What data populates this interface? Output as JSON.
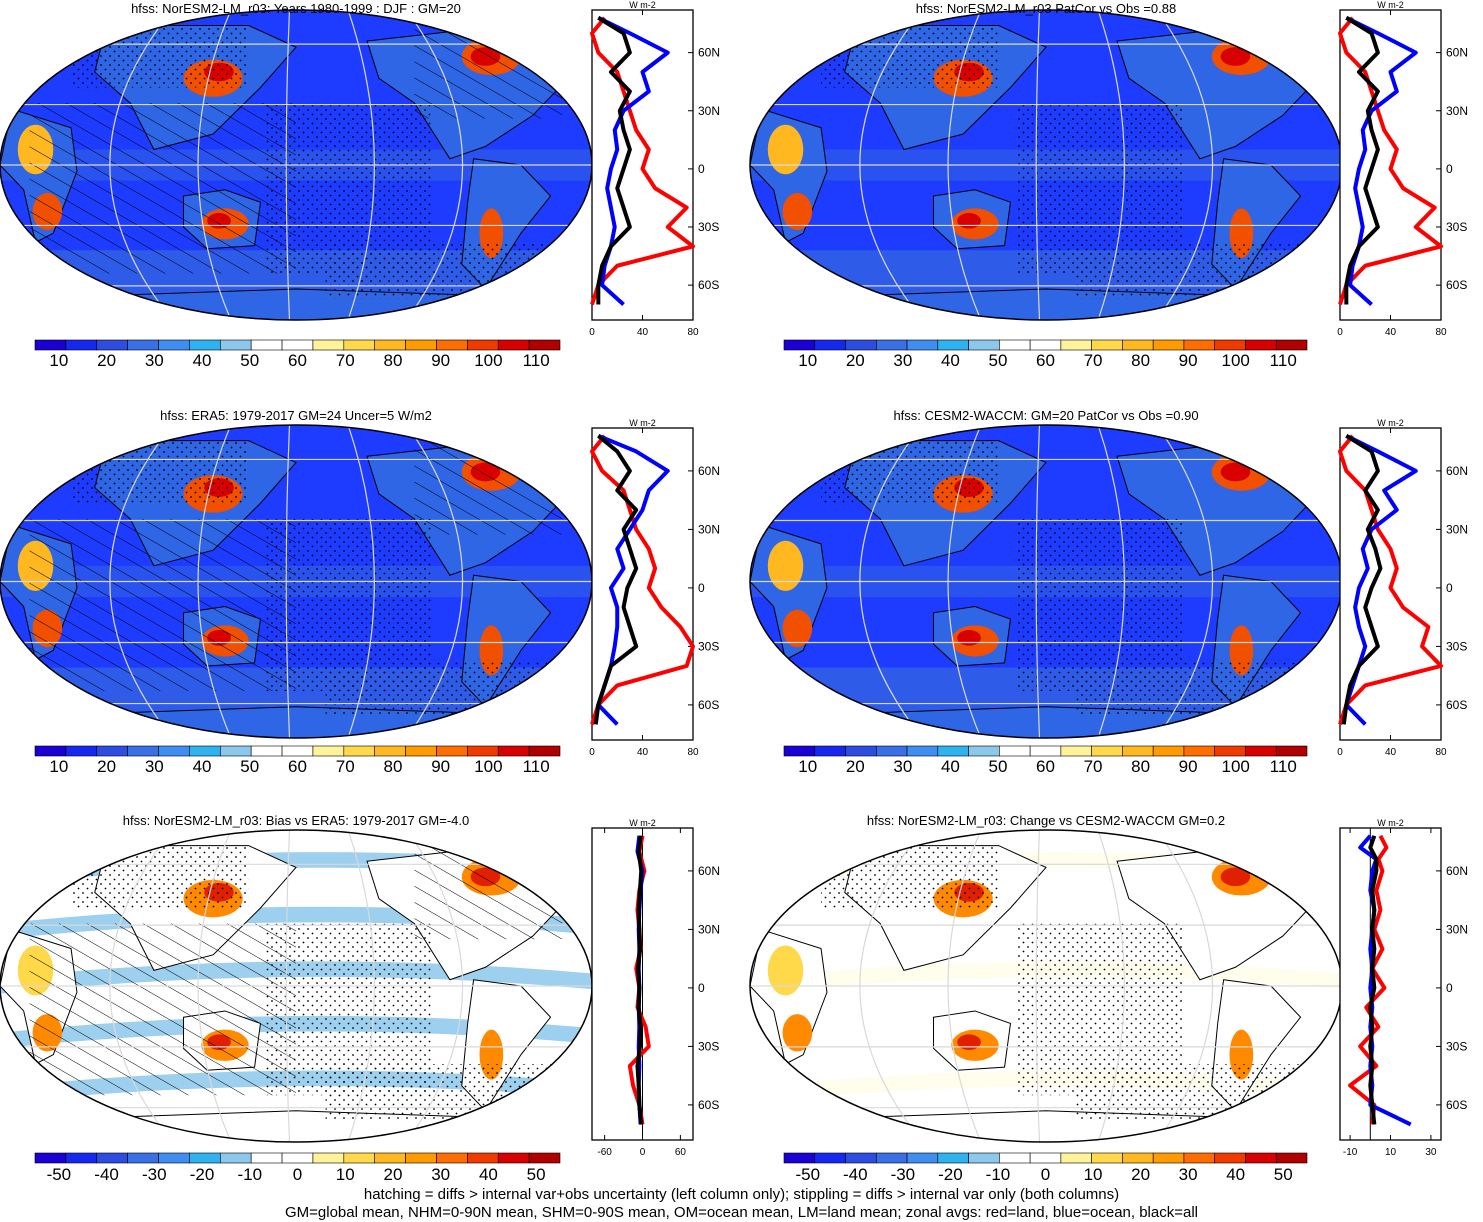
{
  "footer": {
    "line1": "hatching = diffs > internal var+obs uncertainty (left column only); stippling = diffs > internal var only (both columns)",
    "line2": "GM=global mean, NHM=0-90N mean, SHM=0-90S mean, OM=ocean mean, LM=land mean; zonal avgs: red=land, blue=ocean, black=all"
  },
  "colors": {
    "land": "#ff0000",
    "ocean": "#0000ff",
    "all": "#000000",
    "ocean_background": "#1e3cff"
  },
  "chart_data": [
    {
      "type": "heatmap",
      "title": "hfss: NorESM2-LM_r03: Years 1980-1999 : DJF : GM=20",
      "projection": "robinson",
      "colorbar_ticks": [
        "10",
        "20",
        "30",
        "40",
        "50",
        "60",
        "70",
        "80",
        "90",
        "100",
        "110"
      ],
      "colorbar_range": [
        5,
        115
      ],
      "hatching": true,
      "stippling": true,
      "zonal": {
        "unit": "W m-2",
        "xlim": [
          0,
          80
        ],
        "xticks": [
          "0",
          "40",
          "80"
        ],
        "lat_ticks": [
          "60N",
          "30N",
          "0",
          "30S",
          "60S"
        ],
        "series": [
          {
            "name": "land",
            "lat": [
              78,
              70,
              60,
              50,
              40,
              30,
              20,
              10,
              0,
              -10,
              -20,
              -30,
              -40,
              -50,
              -60,
              -70
            ],
            "values": [
              10,
              0,
              5,
              20,
              25,
              30,
              35,
              45,
              40,
              50,
              75,
              60,
              80,
              20,
              5,
              0
            ]
          },
          {
            "name": "ocean",
            "lat": [
              78,
              70,
              60,
              50,
              40,
              30,
              20,
              10,
              0,
              -10,
              -20,
              -30,
              -40,
              -50,
              -60,
              -70
            ],
            "values": [
              5,
              30,
              60,
              40,
              45,
              25,
              18,
              20,
              15,
              12,
              15,
              18,
              15,
              10,
              8,
              25
            ]
          },
          {
            "name": "all",
            "lat": [
              78,
              70,
              60,
              50,
              40,
              30,
              20,
              10,
              0,
              -10,
              -20,
              -30,
              -40,
              -50,
              -60,
              -70
            ],
            "values": [
              5,
              25,
              30,
              15,
              30,
              22,
              25,
              30,
              25,
              20,
              25,
              30,
              15,
              8,
              5,
              5
            ]
          }
        ]
      }
    },
    {
      "type": "heatmap",
      "title": "hfss: NorESM2-LM_r03 PatCor vs Obs =0.88",
      "projection": "robinson",
      "colorbar_ticks": [
        "10",
        "20",
        "30",
        "40",
        "50",
        "60",
        "70",
        "80",
        "90",
        "100",
        "110"
      ],
      "colorbar_range": [
        5,
        115
      ],
      "hatching": false,
      "stippling": true,
      "zonal": {
        "unit": "W m-2",
        "xlim": [
          0,
          80
        ],
        "xticks": [
          "0",
          "40",
          "80"
        ],
        "lat_ticks": [
          "60N",
          "30N",
          "0",
          "30S",
          "60S"
        ],
        "series": [
          {
            "name": "land",
            "lat": [
              78,
              70,
              60,
              50,
              40,
              30,
              20,
              10,
              0,
              -10,
              -20,
              -30,
              -40,
              -50,
              -60,
              -70
            ],
            "values": [
              10,
              0,
              5,
              20,
              25,
              30,
              35,
              45,
              40,
              50,
              75,
              60,
              80,
              20,
              5,
              0
            ]
          },
          {
            "name": "ocean",
            "lat": [
              78,
              70,
              60,
              50,
              40,
              30,
              20,
              10,
              0,
              -10,
              -20,
              -30,
              -40,
              -50,
              -60,
              -70
            ],
            "values": [
              5,
              30,
              60,
              40,
              45,
              25,
              18,
              20,
              15,
              12,
              15,
              18,
              15,
              10,
              8,
              25
            ]
          },
          {
            "name": "all",
            "lat": [
              78,
              70,
              60,
              50,
              40,
              30,
              20,
              10,
              0,
              -10,
              -20,
              -30,
              -40,
              -50,
              -60,
              -70
            ],
            "values": [
              5,
              25,
              30,
              15,
              30,
              22,
              25,
              30,
              25,
              20,
              25,
              30,
              15,
              8,
              5,
              5
            ]
          }
        ]
      }
    },
    {
      "type": "heatmap",
      "title": "hfss: ERA5: 1979-2017 GM=24 Uncer=5 W/m2",
      "projection": "robinson",
      "colorbar_ticks": [
        "10",
        "20",
        "30",
        "40",
        "50",
        "60",
        "70",
        "80",
        "90",
        "100",
        "110"
      ],
      "colorbar_range": [
        5,
        115
      ],
      "hatching": true,
      "stippling": true,
      "zonal": {
        "unit": "W m-2",
        "xlim": [
          0,
          80
        ],
        "xticks": [
          "0",
          "40",
          "80"
        ],
        "lat_ticks": [
          "60N",
          "30N",
          "0",
          "30S",
          "60S"
        ],
        "series": [
          {
            "name": "land",
            "lat": [
              78,
              70,
              60,
              50,
              40,
              30,
              20,
              10,
              0,
              -10,
              -20,
              -30,
              -40,
              -50,
              -60,
              -70
            ],
            "values": [
              10,
              0,
              8,
              25,
              30,
              35,
              45,
              50,
              45,
              55,
              70,
              80,
              75,
              20,
              5,
              0
            ]
          },
          {
            "name": "ocean",
            "lat": [
              78,
              70,
              60,
              50,
              40,
              30,
              20,
              10,
              0,
              -10,
              -20,
              -30,
              -40,
              -50,
              -60,
              -70
            ],
            "values": [
              5,
              35,
              60,
              45,
              40,
              30,
              20,
              25,
              15,
              20,
              20,
              18,
              15,
              10,
              5,
              20
            ]
          },
          {
            "name": "all",
            "lat": [
              78,
              70,
              60,
              50,
              40,
              30,
              20,
              10,
              0,
              -10,
              -20,
              -30,
              -40,
              -50,
              -60,
              -70
            ],
            "values": [
              5,
              20,
              30,
              20,
              35,
              25,
              30,
              35,
              28,
              25,
              30,
              35,
              15,
              10,
              5,
              3
            ]
          }
        ]
      }
    },
    {
      "type": "heatmap",
      "title": "hfss: CESM2-WACCM: GM=20 PatCor vs Obs =0.90",
      "projection": "robinson",
      "colorbar_ticks": [
        "10",
        "20",
        "30",
        "40",
        "50",
        "60",
        "70",
        "80",
        "90",
        "100",
        "110"
      ],
      "colorbar_range": [
        5,
        115
      ],
      "hatching": false,
      "stippling": true,
      "zonal": {
        "unit": "W m-2",
        "xlim": [
          0,
          80
        ],
        "xticks": [
          "0",
          "40",
          "80"
        ],
        "lat_ticks": [
          "60N",
          "30N",
          "0",
          "30S",
          "60S"
        ],
        "series": [
          {
            "name": "land",
            "lat": [
              78,
              70,
              60,
              50,
              40,
              30,
              20,
              10,
              0,
              -10,
              -20,
              -30,
              -40,
              -50,
              -60,
              -70
            ],
            "values": [
              10,
              0,
              5,
              20,
              25,
              30,
              40,
              45,
              40,
              50,
              70,
              65,
              80,
              20,
              5,
              0
            ]
          },
          {
            "name": "ocean",
            "lat": [
              78,
              70,
              60,
              50,
              40,
              30,
              20,
              10,
              0,
              -10,
              -20,
              -30,
              -40,
              -50,
              -60,
              -70
            ],
            "values": [
              5,
              30,
              60,
              35,
              45,
              25,
              18,
              22,
              15,
              12,
              15,
              20,
              15,
              10,
              5,
              20
            ]
          },
          {
            "name": "all",
            "lat": [
              78,
              70,
              60,
              50,
              40,
              30,
              20,
              10,
              0,
              -10,
              -20,
              -30,
              -40,
              -50,
              -60,
              -70
            ],
            "values": [
              5,
              25,
              30,
              20,
              30,
              22,
              28,
              32,
              25,
              20,
              25,
              30,
              15,
              8,
              5,
              3
            ]
          }
        ]
      }
    },
    {
      "type": "heatmap",
      "title": "hfss: NorESM2-LM_r03: Bias vs ERA5: 1979-2017 GM=-4.0",
      "projection": "robinson",
      "colorbar_ticks": [
        "-50",
        "-40",
        "-30",
        "-20",
        "-10",
        "0",
        "10",
        "20",
        "30",
        "40",
        "50"
      ],
      "colorbar_range": [
        -55,
        55
      ],
      "hatching": true,
      "stippling": true,
      "zonal": {
        "unit": "W m-2",
        "xlim": [
          -80,
          80
        ],
        "xticks": [
          "-60",
          "0",
          "60"
        ],
        "lat_ticks": [
          "60N",
          "30N",
          "0",
          "30S",
          "60S"
        ],
        "series": [
          {
            "name": "land",
            "lat": [
              78,
              70,
              60,
              50,
              40,
              30,
              20,
              10,
              0,
              -10,
              -20,
              -30,
              -40,
              -50,
              -60,
              -70
            ],
            "values": [
              0,
              -5,
              3,
              -5,
              -8,
              -5,
              -3,
              -10,
              -5,
              -8,
              5,
              10,
              -20,
              -15,
              -5,
              0
            ]
          },
          {
            "name": "ocean",
            "lat": [
              78,
              70,
              60,
              50,
              40,
              30,
              20,
              10,
              0,
              -10,
              -20,
              -30,
              -40,
              -50,
              -60,
              -70
            ],
            "values": [
              -5,
              -8,
              0,
              -3,
              -5,
              -6,
              -5,
              -6,
              -5,
              -6,
              -5,
              -6,
              -5,
              -6,
              -5,
              -3
            ]
          },
          {
            "name": "all",
            "lat": [
              78,
              70,
              60,
              50,
              40,
              30,
              20,
              10,
              0,
              -10,
              -20,
              -30,
              -40,
              -50,
              -60,
              -70
            ],
            "values": [
              -3,
              -6,
              -2,
              -4,
              -6,
              -5,
              -4,
              -7,
              -5,
              -6,
              -3,
              -4,
              -8,
              -6,
              -5,
              -2
            ]
          }
        ]
      }
    },
    {
      "type": "heatmap",
      "title": "hfss: NorESM2-LM_r03: Change vs CESM2-WACCM GM=0.2",
      "projection": "robinson",
      "colorbar_ticks": [
        "-50",
        "-40",
        "-30",
        "-20",
        "-10",
        "0",
        "10",
        "20",
        "30",
        "40",
        "50"
      ],
      "colorbar_range": [
        -55,
        55
      ],
      "hatching": false,
      "stippling": true,
      "zonal": {
        "unit": "W m-2",
        "xlim": [
          -15,
          35
        ],
        "xticks": [
          "-10",
          "10",
          "30"
        ],
        "lat_ticks": [
          "60N",
          "30N",
          "0",
          "30S",
          "60S"
        ],
        "series": [
          {
            "name": "land",
            "lat": [
              78,
              72,
              66,
              60,
              50,
              40,
              30,
              20,
              10,
              0,
              -10,
              -20,
              -30,
              -40,
              -50,
              -60,
              -70
            ],
            "values": [
              5,
              8,
              4,
              6,
              3,
              5,
              2,
              6,
              1,
              7,
              -2,
              4,
              -5,
              3,
              -10,
              2,
              1
            ]
          },
          {
            "name": "ocean",
            "lat": [
              78,
              72,
              66,
              60,
              50,
              40,
              30,
              20,
              10,
              0,
              -10,
              -20,
              -30,
              -40,
              -50,
              -60,
              -70
            ],
            "values": [
              0,
              -5,
              3,
              1,
              0,
              2,
              1,
              0,
              1,
              0,
              1,
              0,
              1,
              0,
              1,
              0,
              20
            ]
          },
          {
            "name": "all",
            "lat": [
              78,
              72,
              66,
              60,
              50,
              40,
              30,
              20,
              10,
              0,
              -10,
              -20,
              -30,
              -40,
              -50,
              -60,
              -70
            ],
            "values": [
              2,
              0,
              3,
              3,
              1,
              2,
              1,
              2,
              1,
              2,
              0,
              1,
              0,
              1,
              0,
              1,
              2
            ]
          }
        ]
      }
    }
  ]
}
